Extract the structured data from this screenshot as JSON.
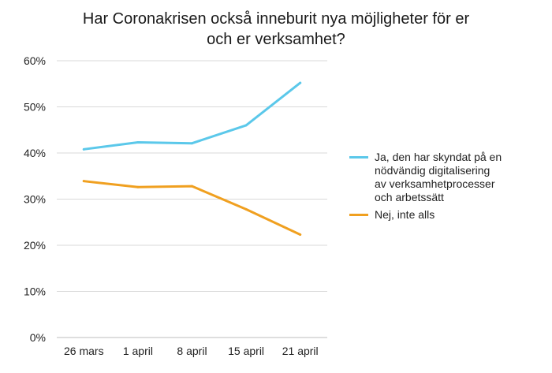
{
  "chart_data": {
    "type": "line",
    "title_lines": [
      "Har Coronakrisen också inneburit nya möjligheter för er",
      "och er verksamhet?"
    ],
    "categories": [
      "26 mars",
      "1 april",
      "8 april",
      "15 april",
      "21 april"
    ],
    "series": [
      {
        "name": "Ja, den har skyndat på en nödvändig digitalisering av verksamhetprocesser och arbetssätt",
        "label_lines": [
          "Ja, den har skyndat på en",
          "nödvändig digitalisering",
          "av verksamhetprocesser",
          "och arbetssätt"
        ],
        "values": [
          40.8,
          42.3,
          42.1,
          46.0,
          55.2
        ],
        "color": "#5bc8ea"
      },
      {
        "name": "Nej, inte alls",
        "label_lines": [
          "Nej, inte alls"
        ],
        "values": [
          33.9,
          32.6,
          32.8,
          27.8,
          22.3
        ],
        "color": "#f0a020"
      }
    ],
    "yticks": [
      "0%",
      "10%",
      "20%",
      "30%",
      "40%",
      "50%",
      "60%"
    ],
    "ylim": [
      0,
      60
    ],
    "grid": true,
    "legend": "right"
  }
}
